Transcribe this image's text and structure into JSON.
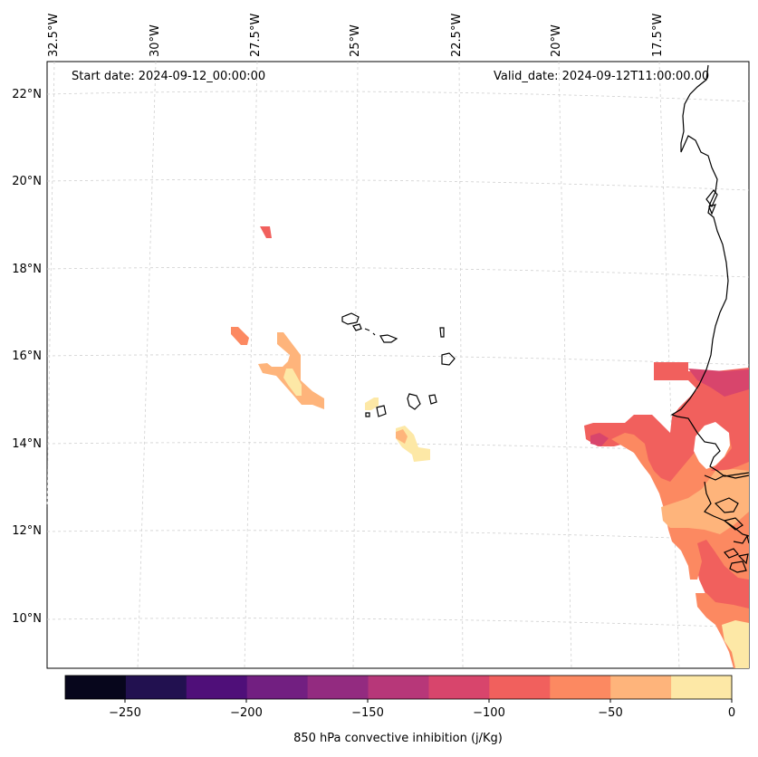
{
  "header": {
    "start_date": "Start date: 2024-09-12_00:00:00",
    "valid_date": "Valid_date: 2024-09-12T11:00:00.00"
  },
  "lon_labels": [
    "32.5°W",
    "30°W",
    "27.5°W",
    "25°W",
    "22.5°W",
    "20°W",
    "17.5°W"
  ],
  "lat_labels": [
    "22°N",
    "20°N",
    "18°N",
    "16°N",
    "14°N",
    "12°N",
    "10°N"
  ],
  "colorbar": {
    "label": "850 hPa convective inhibition (j/Kg)",
    "ticks": [
      "−250",
      "−200",
      "−150",
      "−100",
      "−50",
      "0"
    ],
    "colors": [
      "#07061c",
      "#221150",
      "#4f0f79",
      "#721f81",
      "#932b80",
      "#b73779",
      "#d8456c",
      "#f1605d",
      "#fc8961",
      "#feb47b",
      "#fde8a6"
    ]
  },
  "map": {
    "coastline_color": "#000000",
    "grid_color": "#cccccc"
  }
}
